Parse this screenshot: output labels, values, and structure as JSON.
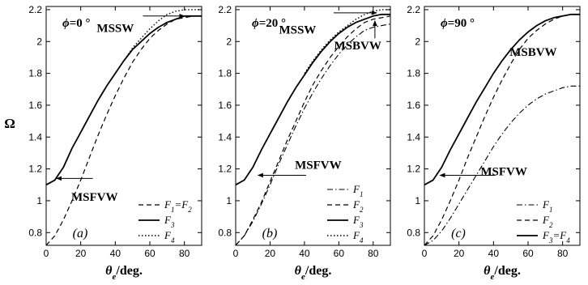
{
  "figure": {
    "y_axis_label": "Ω",
    "x_axis_label": "θe/deg."
  },
  "chart_data": [
    {
      "type": "line",
      "panel": "(a)",
      "phi": "ϕ=0 °",
      "xlabel": "θe/deg.",
      "ylabel": "Ω",
      "xlim": [
        0,
        90
      ],
      "ylim": [
        0.72,
        2.22
      ],
      "xticks": [
        "0",
        "20",
        "40",
        "60",
        "80"
      ],
      "yticks": [
        "0.8",
        "1",
        "1.2",
        "1.4",
        "1.6",
        "1.8",
        "2",
        "2.2"
      ],
      "legend_position": "bottom-right",
      "legend": [
        "F1=F2",
        "F3",
        "F4"
      ],
      "annotations": [
        {
          "text": "MSSW",
          "at": [
            40,
            2.06
          ],
          "arrow_to": [
            80,
            2.16
          ],
          "arrow_from": [
            56,
            2.16
          ]
        },
        {
          "text": "MSFVW",
          "at": [
            28,
            1.0
          ],
          "arrow_to": [
            6,
            1.14
          ],
          "arrow_from": [
            27,
            1.14
          ]
        }
      ],
      "series": [
        {
          "name": "F1=F2",
          "style": "dashed",
          "width": 1.2,
          "x": [
            0,
            5,
            10,
            15,
            20,
            25,
            30,
            35,
            40,
            45,
            50,
            55,
            60,
            65,
            70,
            75,
            80,
            85,
            90
          ],
          "y": [
            0.72,
            0.78,
            0.88,
            1.0,
            1.13,
            1.27,
            1.41,
            1.54,
            1.66,
            1.77,
            1.87,
            1.95,
            2.02,
            2.07,
            2.11,
            2.14,
            2.15,
            2.16,
            2.16
          ]
        },
        {
          "name": "F3",
          "style": "solid",
          "width": 1.8,
          "x": [
            0,
            5,
            10,
            15,
            20,
            25,
            30,
            35,
            40,
            45,
            50,
            55,
            60,
            65,
            70,
            75,
            80,
            85,
            90
          ],
          "y": [
            1.1,
            1.13,
            1.21,
            1.33,
            1.43,
            1.53,
            1.63,
            1.72,
            1.8,
            1.88,
            1.95,
            2.0,
            2.05,
            2.09,
            2.12,
            2.14,
            2.16,
            2.16,
            2.16
          ]
        },
        {
          "name": "F4",
          "style": "dotted",
          "width": 1.4,
          "x": [
            30,
            35,
            40,
            45,
            50,
            55,
            60,
            65,
            70,
            75,
            80,
            85,
            90
          ],
          "y": [
            1.63,
            1.72,
            1.8,
            1.88,
            1.96,
            2.02,
            2.08,
            2.13,
            2.17,
            2.19,
            2.2,
            2.2,
            2.2
          ]
        }
      ]
    },
    {
      "type": "line",
      "panel": "(b)",
      "phi": "ϕ=20 °",
      "xlabel": "θe/deg.",
      "ylabel": "",
      "xlim": [
        0,
        90
      ],
      "ylim": [
        0.72,
        2.22
      ],
      "xticks": [
        "0",
        "20",
        "40",
        "60",
        "80"
      ],
      "yticks": [
        "0.8",
        "1",
        "1.2",
        "1.4",
        "1.6",
        "1.8",
        "2",
        "2.2"
      ],
      "legend_position": "bottom-right",
      "legend": [
        "F1",
        "F2",
        "F3",
        "F4"
      ],
      "annotations": [
        {
          "text": "MSSW",
          "at": [
            36,
            2.05
          ],
          "arrow_to": [
            82,
            2.18
          ],
          "arrow_from": [
            57,
            2.18
          ]
        },
        {
          "text": "MSBVW",
          "at": [
            71,
            1.95
          ],
          "arrow_to": [
            81,
            2.13
          ],
          "arrow_from": [
            81,
            2.02
          ]
        },
        {
          "text": "MSFVW",
          "at": [
            48,
            1.2
          ],
          "arrow_to": [
            13,
            1.16
          ],
          "arrow_from": [
            41,
            1.16
          ]
        }
      ],
      "series": [
        {
          "name": "F1",
          "style": "dashdot",
          "width": 1.1,
          "x": [
            0,
            5,
            10,
            15,
            20,
            25,
            30,
            35,
            40,
            45,
            50,
            55,
            60,
            65,
            70,
            75,
            80,
            85,
            90
          ],
          "y": [
            0.72,
            0.78,
            0.87,
            0.98,
            1.1,
            1.23,
            1.35,
            1.47,
            1.58,
            1.68,
            1.77,
            1.85,
            1.92,
            1.98,
            2.03,
            2.07,
            2.09,
            2.1,
            2.11
          ]
        },
        {
          "name": "F2",
          "style": "dashed",
          "width": 1.2,
          "x": [
            0,
            5,
            10,
            15,
            20,
            25,
            30,
            35,
            40,
            45,
            50,
            55,
            60,
            65,
            70,
            75,
            80,
            85,
            90
          ],
          "y": [
            0.72,
            0.78,
            0.88,
            0.99,
            1.12,
            1.25,
            1.38,
            1.5,
            1.62,
            1.73,
            1.82,
            1.9,
            1.97,
            2.03,
            2.08,
            2.12,
            2.14,
            2.15,
            2.16
          ]
        },
        {
          "name": "F3",
          "style": "solid",
          "width": 1.8,
          "x": [
            0,
            5,
            10,
            15,
            20,
            25,
            30,
            35,
            40,
            45,
            50,
            55,
            60,
            65,
            70,
            75,
            80,
            85,
            90
          ],
          "y": [
            1.1,
            1.13,
            1.21,
            1.32,
            1.42,
            1.52,
            1.62,
            1.71,
            1.79,
            1.87,
            1.94,
            2.0,
            2.05,
            2.09,
            2.12,
            2.14,
            2.16,
            2.17,
            2.17
          ]
        },
        {
          "name": "F4",
          "style": "dotted",
          "width": 1.4,
          "x": [
            40,
            45,
            50,
            55,
            60,
            65,
            70,
            75,
            80,
            85,
            90
          ],
          "y": [
            1.8,
            1.88,
            1.95,
            2.01,
            2.06,
            2.1,
            2.14,
            2.17,
            2.19,
            2.2,
            2.2
          ]
        }
      ]
    },
    {
      "type": "line",
      "panel": "(c)",
      "phi": "ϕ=90 °",
      "xlabel": "θe/deg.",
      "ylabel": "",
      "xlim": [
        0,
        90
      ],
      "ylim": [
        0.72,
        2.22
      ],
      "xticks": [
        "0",
        "20",
        "40",
        "60",
        "80"
      ],
      "yticks": [
        "0.8",
        "1",
        "1.2",
        "1.4",
        "1.6",
        "1.8",
        "2",
        "2.2"
      ],
      "legend_position": "bottom-right",
      "legend": [
        "F1",
        "F2",
        "F3=F4"
      ],
      "annotations": [
        {
          "text": "MSBVW",
          "at": [
            63,
            1.91
          ],
          "arrow_to": null,
          "arrow_from": null
        },
        {
          "text": "MSFVW",
          "at": [
            46,
            1.16
          ],
          "arrow_to": [
            9,
            1.16
          ],
          "arrow_from": [
            41,
            1.16
          ]
        }
      ],
      "series": [
        {
          "name": "F1",
          "style": "dashdot",
          "width": 1.1,
          "x": [
            0,
            5,
            10,
            15,
            20,
            25,
            30,
            35,
            40,
            45,
            50,
            55,
            60,
            65,
            70,
            75,
            80,
            85,
            90
          ],
          "y": [
            0.72,
            0.75,
            0.81,
            0.89,
            0.98,
            1.07,
            1.16,
            1.25,
            1.34,
            1.42,
            1.49,
            1.55,
            1.6,
            1.64,
            1.67,
            1.69,
            1.71,
            1.72,
            1.72
          ]
        },
        {
          "name": "F2",
          "style": "dashed",
          "width": 1.2,
          "x": [
            0,
            5,
            10,
            15,
            20,
            25,
            30,
            35,
            40,
            45,
            50,
            55,
            60,
            65,
            70,
            75,
            80,
            85,
            90
          ],
          "y": [
            0.72,
            0.78,
            0.88,
            1.0,
            1.13,
            1.27,
            1.4,
            1.53,
            1.65,
            1.76,
            1.86,
            1.95,
            2.02,
            2.07,
            2.11,
            2.14,
            2.16,
            2.17,
            2.17
          ]
        },
        {
          "name": "F3=F4",
          "style": "solid",
          "width": 1.8,
          "x": [
            0,
            5,
            10,
            15,
            20,
            25,
            30,
            35,
            40,
            45,
            50,
            55,
            60,
            65,
            70,
            75,
            80,
            85,
            90
          ],
          "y": [
            1.1,
            1.13,
            1.21,
            1.32,
            1.42,
            1.52,
            1.62,
            1.71,
            1.8,
            1.88,
            1.95,
            2.01,
            2.06,
            2.1,
            2.13,
            2.15,
            2.16,
            2.17,
            2.17
          ]
        }
      ]
    }
  ]
}
